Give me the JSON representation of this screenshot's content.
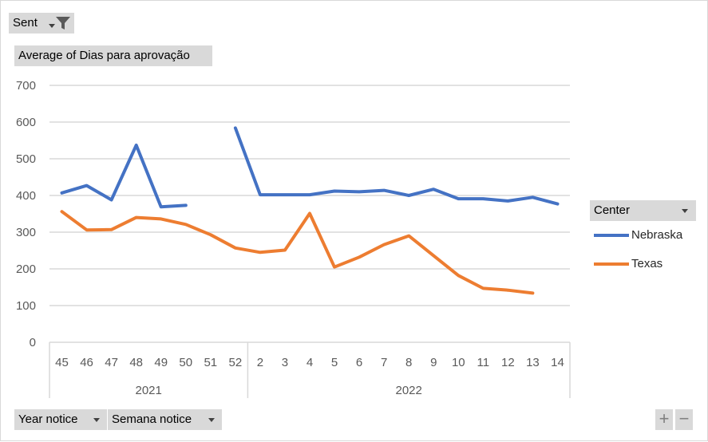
{
  "filter": {
    "label": "Sent",
    "icon": "funnel-icon"
  },
  "value_field": {
    "label": "Average of Dias para aprovação"
  },
  "legend": {
    "title": "Center"
  },
  "axis_fields": [
    {
      "label": "Year notice"
    },
    {
      "label": "Semana notice"
    }
  ],
  "controls": {
    "expand": "+",
    "collapse": "−"
  },
  "colors": {
    "Nebraska": "#4472c4",
    "Texas": "#ed7d31",
    "grid": "#d9d9d9",
    "field_button": "#d9d9d9"
  },
  "chart_data": {
    "type": "line",
    "ylim": [
      0,
      700
    ],
    "yticks": [
      0,
      100,
      200,
      300,
      400,
      500,
      600,
      700
    ],
    "grid": true,
    "legend_position": "right",
    "categories": [
      "45",
      "46",
      "47",
      "48",
      "49",
      "50",
      "51",
      "52",
      "2",
      "3",
      "4",
      "5",
      "6",
      "7",
      "8",
      "9",
      "10",
      "11",
      "12",
      "13",
      "14"
    ],
    "groups": [
      {
        "label": "2021",
        "start": 0,
        "end": 7
      },
      {
        "label": "2022",
        "start": 8,
        "end": 20
      }
    ],
    "series": [
      {
        "name": "Nebraska",
        "values": [
          407,
          427,
          388,
          537,
          369,
          373,
          null,
          584,
          402,
          402,
          402,
          412,
          410,
          414,
          400,
          417,
          391,
          391,
          385,
          395,
          377
        ]
      },
      {
        "name": "Texas",
        "values": [
          356,
          306,
          307,
          340,
          336,
          321,
          293,
          257,
          245,
          251,
          351,
          205,
          232,
          266,
          290,
          236,
          182,
          147,
          142,
          134,
          null
        ]
      }
    ]
  }
}
